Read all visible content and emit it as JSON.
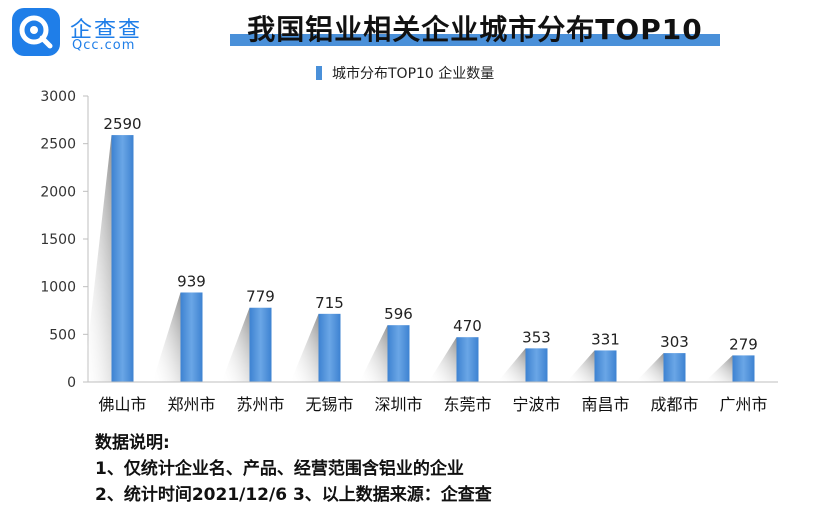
{
  "logo": {
    "name": "企查查",
    "domain": "Qcc.com",
    "icon": "qcc-logo-icon"
  },
  "legend": {
    "label": "城市分布TOP10 企业数量"
  },
  "colors": {
    "bar": "#4a90d9",
    "bar_dark": "#2f72c4",
    "title_underline": "#4a90d9",
    "axis": "#bfbfbf"
  },
  "chart_data": {
    "type": "bar",
    "title": "我国铝业相关企业城市分布TOP10",
    "categories": [
      "佛山市",
      "郑州市",
      "苏州市",
      "无锡市",
      "深圳市",
      "东莞市",
      "宁波市",
      "南昌市",
      "成都市",
      "广州市"
    ],
    "series": [
      {
        "name": "城市分布TOP10 企业数量",
        "values": [
          2590,
          939,
          779,
          715,
          596,
          470,
          353,
          331,
          303,
          279
        ]
      }
    ],
    "ylim": [
      0,
      3000
    ],
    "yticks": [
      0,
      500,
      1000,
      1500,
      2000,
      2500,
      3000
    ],
    "data_labels": true,
    "grid": false,
    "legend_position": "top"
  },
  "notes": {
    "heading": "数据说明:",
    "line1": "1、仅统计企业名、产品、经营范围含铝业的企业",
    "line2": "2、统计时间2021/12/6   3、以上数据来源：企查查"
  }
}
